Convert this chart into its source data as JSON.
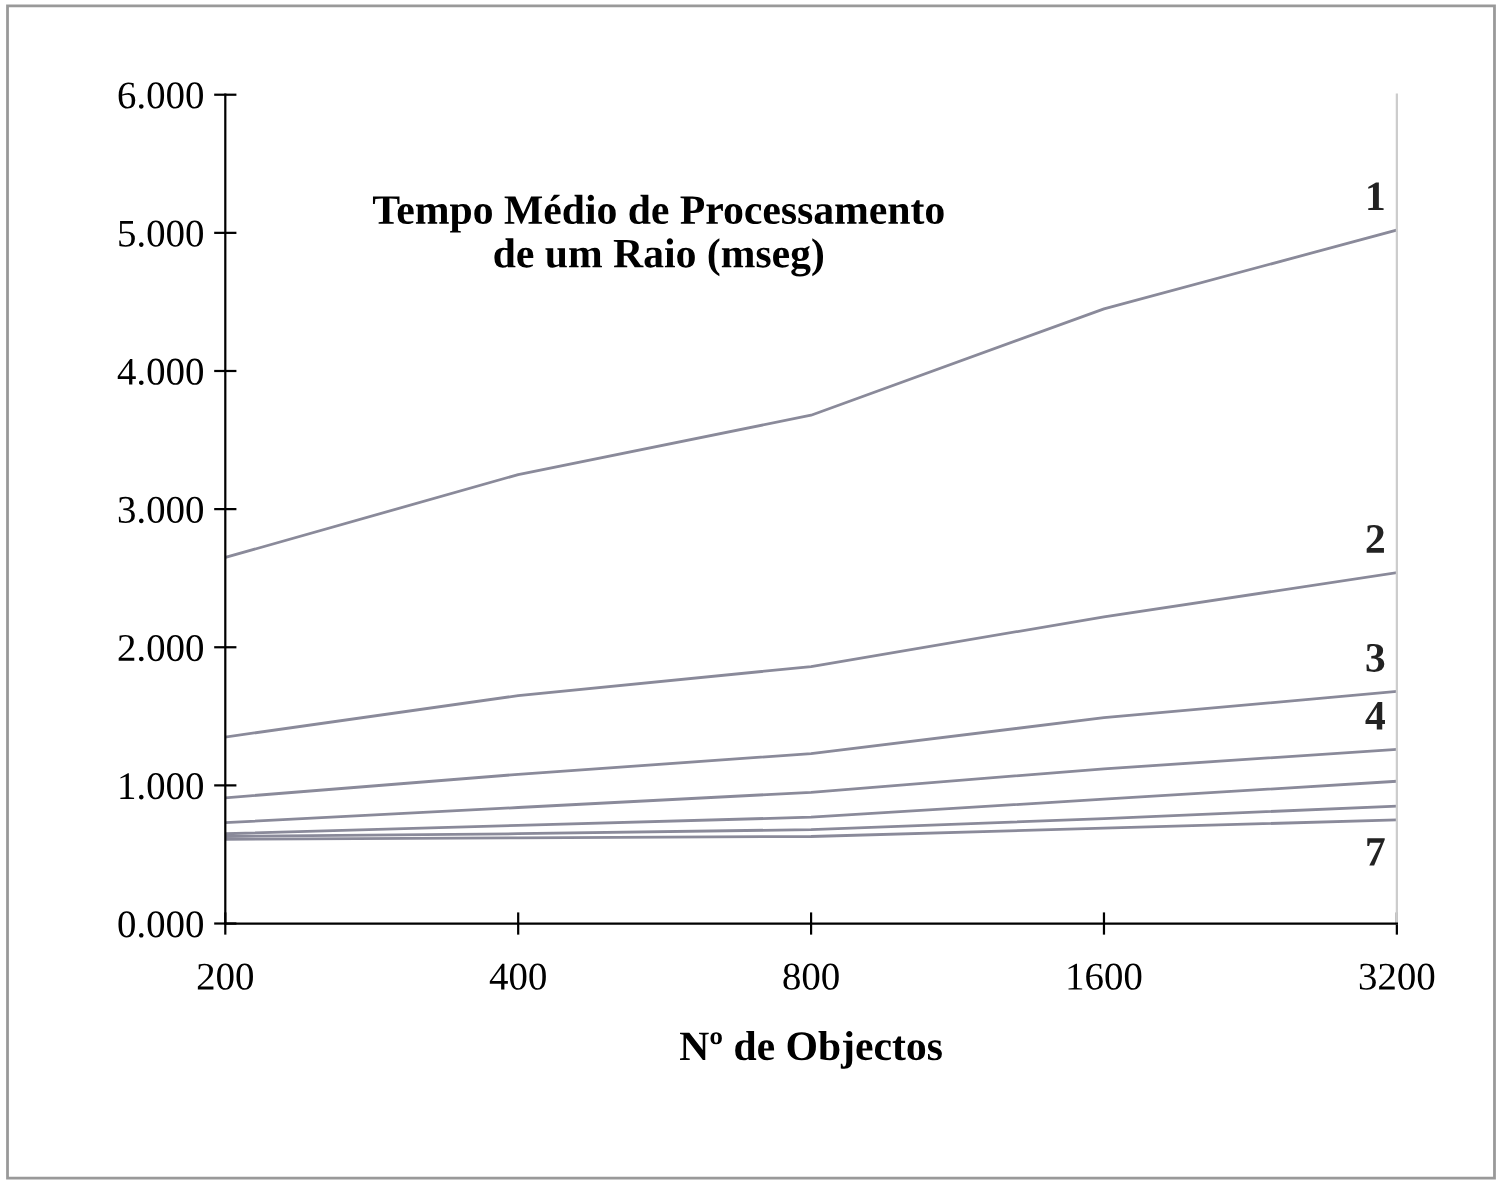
{
  "chart_data": {
    "type": "line",
    "title": "Tempo Médio de Processamento\nde um Raio (mseg)",
    "xlabel": "Nº de Objectos",
    "categories": [
      "200",
      "400",
      "800",
      "1600",
      "3200"
    ],
    "series": [
      {
        "name": "1",
        "color": "#8a8a9a",
        "values": [
          2.65,
          3.25,
          3.68,
          4.45,
          5.02
        ]
      },
      {
        "name": "2",
        "color": "#8a8a9a",
        "values": [
          1.35,
          1.65,
          1.86,
          2.22,
          2.54
        ]
      },
      {
        "name": "3",
        "color": "#8a8a9a",
        "values": [
          0.91,
          1.08,
          1.23,
          1.49,
          1.68
        ]
      },
      {
        "name": "4",
        "color": "#8a8a9a",
        "values": [
          0.73,
          0.84,
          0.95,
          1.12,
          1.26
        ]
      },
      {
        "color": "#8a8a9a",
        "values": [
          0.65,
          0.71,
          0.77,
          0.9,
          1.03
        ]
      },
      {
        "color": "#8a8a9a",
        "values": [
          0.63,
          0.65,
          0.68,
          0.76,
          0.85
        ]
      },
      {
        "name": "7",
        "color": "#8a8a9a",
        "values": [
          0.61,
          0.62,
          0.63,
          0.69,
          0.75
        ]
      }
    ],
    "ylim": [
      0,
      6
    ],
    "yticks": [
      {
        "value": 0,
        "label": "0.000"
      },
      {
        "value": 1,
        "label": "1.000"
      },
      {
        "value": 2,
        "label": "2.000"
      },
      {
        "value": 3,
        "label": "3.000"
      },
      {
        "value": 4,
        "label": "4.000"
      },
      {
        "value": 5,
        "label": "5.000"
      },
      {
        "value": 6,
        "label": "6.000"
      }
    ],
    "grid": false,
    "legend": false,
    "marker": "none",
    "line_style": "solid"
  }
}
